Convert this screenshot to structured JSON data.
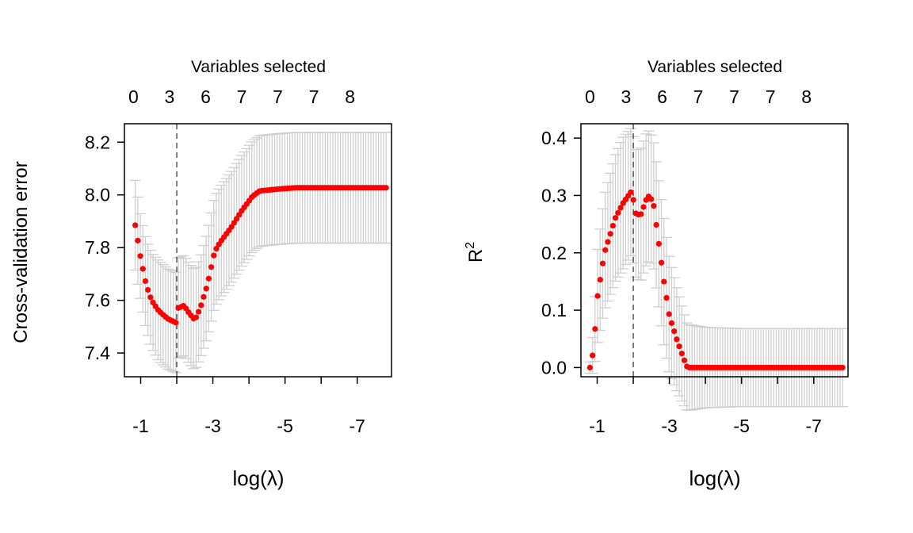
{
  "chart_data": [
    {
      "type": "scatter",
      "panel": "left",
      "xlabel": "log(λ)",
      "ylabel": "Cross-validation error",
      "top_axis_title": "Variables selected",
      "top_tick_labels": [
        "0",
        "3",
        "6",
        "7",
        "7",
        "7",
        "8"
      ],
      "top_tick_positions": [
        -0.8,
        -1.8,
        -2.8,
        -3.8,
        -4.8,
        -5.8,
        -6.8
      ],
      "x_tick_labels": [
        "-1",
        "-3",
        "-5",
        "-7"
      ],
      "x_minor_ticks": [
        -1,
        -2,
        -3,
        -4,
        -5,
        -6,
        -7
      ],
      "y_tick_labels": [
        "7.4",
        "7.6",
        "7.8",
        "8.0",
        "8.2"
      ],
      "y_ticks": [
        7.4,
        7.6,
        7.8,
        8.0,
        8.2
      ],
      "xlim": [
        -0.55,
        -7.95
      ],
      "ylim": [
        7.31,
        8.27
      ],
      "vline_x": -2.0,
      "point_color": "#ff0000",
      "error_bar_color": "#cfcfcf",
      "anchors": [
        [
          -0.85,
          7.885,
          0.17
        ],
        [
          -1.0,
          7.76,
          0.16
        ],
        [
          -1.15,
          7.66,
          0.17
        ],
        [
          -1.3,
          7.6,
          0.18
        ],
        [
          -1.5,
          7.56,
          0.19
        ],
        [
          -1.75,
          7.53,
          0.19
        ],
        [
          -1.98,
          7.515,
          0.19
        ],
        [
          -2.03,
          7.57,
          0.19
        ],
        [
          -2.2,
          7.58,
          0.19
        ],
        [
          -2.35,
          7.55,
          0.19
        ],
        [
          -2.5,
          7.525,
          0.19
        ],
        [
          -2.65,
          7.57,
          0.19
        ],
        [
          -2.85,
          7.66,
          0.2
        ],
        [
          -3.05,
          7.785,
          0.21
        ],
        [
          -3.2,
          7.82,
          0.21
        ],
        [
          -3.5,
          7.875,
          0.21
        ],
        [
          -3.8,
          7.94,
          0.21
        ],
        [
          -4.1,
          7.995,
          0.21
        ],
        [
          -4.3,
          8.015,
          0.21
        ],
        [
          -4.8,
          8.022,
          0.21
        ],
        [
          -5.3,
          8.027,
          0.21
        ],
        [
          -7.8,
          8.027,
          0.21
        ]
      ],
      "n_points": 100
    },
    {
      "type": "scatter",
      "panel": "right",
      "xlabel": "log(λ)",
      "ylabel": "R",
      "ylabel_superscript": "2",
      "top_axis_title": "Variables selected",
      "top_tick_labels": [
        "0",
        "3",
        "6",
        "7",
        "7",
        "7",
        "8"
      ],
      "top_tick_positions": [
        -0.8,
        -1.8,
        -2.8,
        -3.8,
        -4.8,
        -5.8,
        -6.8
      ],
      "x_tick_labels": [
        "-1",
        "-3",
        "-5",
        "-7"
      ],
      "x_minor_ticks": [
        -1,
        -2,
        -3,
        -4,
        -5,
        -6,
        -7
      ],
      "y_tick_labels": [
        "0.0",
        "0.1",
        "0.2",
        "0.3",
        "0.4"
      ],
      "y_ticks": [
        0.0,
        0.1,
        0.2,
        0.3,
        0.4
      ],
      "xlim": [
        -0.55,
        -7.95
      ],
      "ylim": [
        -0.016,
        0.425
      ],
      "vline_x": -2.0,
      "point_color": "#ff0000",
      "error_bar_color": "#cfcfcf",
      "anchors": [
        [
          -0.8,
          0.0,
          0.01
        ],
        [
          -0.9,
          0.03,
          0.04
        ],
        [
          -1.0,
          0.12,
          0.08
        ],
        [
          -1.2,
          0.2,
          0.1
        ],
        [
          -1.5,
          0.26,
          0.11
        ],
        [
          -1.7,
          0.285,
          0.115
        ],
        [
          -1.98,
          0.31,
          0.11
        ],
        [
          -2.03,
          0.27,
          0.11
        ],
        [
          -2.2,
          0.265,
          0.115
        ],
        [
          -2.4,
          0.3,
          0.115
        ],
        [
          -2.55,
          0.29,
          0.11
        ],
        [
          -2.7,
          0.22,
          0.11
        ],
        [
          -2.85,
          0.15,
          0.11
        ],
        [
          -3.0,
          0.09,
          0.1
        ],
        [
          -3.2,
          0.05,
          0.09
        ],
        [
          -3.4,
          0.015,
          0.08
        ],
        [
          -3.5,
          0.0,
          0.075
        ],
        [
          -4.0,
          0.0,
          0.07
        ],
        [
          -5.0,
          0.0,
          0.068
        ],
        [
          -7.8,
          0.0,
          0.068
        ]
      ],
      "n_points": 100
    }
  ]
}
